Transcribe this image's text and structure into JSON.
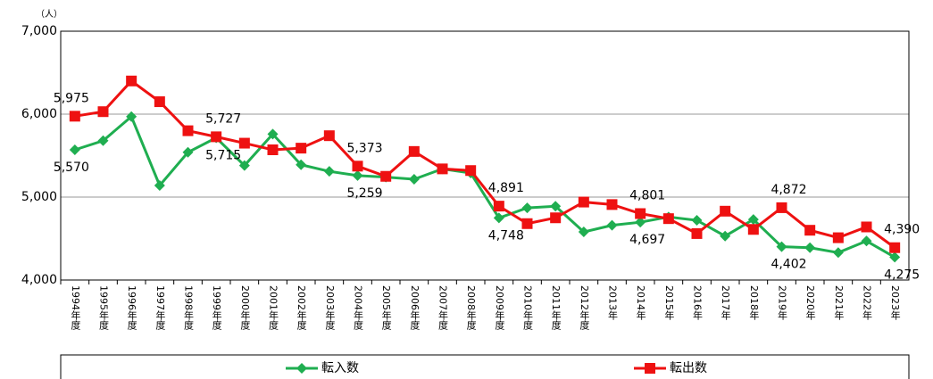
{
  "chart_data": {
    "type": "line",
    "y_unit": "（人）",
    "categories": [
      "1994年度",
      "1995年度",
      "1996年度",
      "1997年度",
      "1998年度",
      "1999年度",
      "2000年度",
      "2001年度",
      "2002年度",
      "2003年度",
      "2004年度",
      "2005年度",
      "2006年度",
      "2007年度",
      "2008年度",
      "2009年度",
      "2010年度",
      "2011年度",
      "2012年度",
      "2013年",
      "2014年",
      "2015年",
      "2016年",
      "2017年",
      "2018年",
      "2019年",
      "2020年",
      "2021年",
      "2022年",
      "2023年"
    ],
    "series": [
      {
        "name": "転入数",
        "color": "#1fae50",
        "marker": "diamond",
        "values": [
          5570,
          5680,
          5970,
          5140,
          5540,
          5715,
          5380,
          5760,
          5390,
          5310,
          5259,
          5240,
          5215,
          5340,
          5290,
          4748,
          4870,
          4890,
          4580,
          4660,
          4697,
          4760,
          4720,
          4530,
          4730,
          4402,
          4390,
          4330,
          4470,
          4275
        ],
        "value_labels": [
          "5,570",
          null,
          null,
          null,
          null,
          "5,715",
          null,
          null,
          null,
          null,
          "5,259",
          null,
          null,
          null,
          null,
          "4,748",
          null,
          null,
          null,
          null,
          "4,697",
          null,
          null,
          null,
          null,
          "4,402",
          null,
          null,
          null,
          "4,275"
        ]
      },
      {
        "name": "転出数",
        "color": "#ee1111",
        "marker": "square",
        "values": [
          5975,
          6030,
          6400,
          6150,
          5800,
          5727,
          5650,
          5570,
          5590,
          5740,
          5373,
          5250,
          5550,
          5340,
          5320,
          4891,
          4680,
          4750,
          4940,
          4910,
          4801,
          4740,
          4560,
          4830,
          4610,
          4872,
          4600,
          4510,
          4640,
          4390
        ],
        "value_labels": [
          "5,975",
          null,
          null,
          null,
          null,
          "5,727",
          null,
          null,
          null,
          null,
          "5,373",
          null,
          null,
          null,
          null,
          "4,891",
          null,
          null,
          null,
          null,
          "4,801",
          null,
          null,
          null,
          null,
          "4,872",
          null,
          null,
          null,
          "4,390"
        ]
      }
    ],
    "ylim": [
      4000,
      7000
    ],
    "yticks": [
      {
        "value": 4000,
        "label": "4,000"
      },
      {
        "value": 5000,
        "label": "5,000"
      },
      {
        "value": 6000,
        "label": "6,000"
      },
      {
        "value": 7000,
        "label": "7,000"
      }
    ],
    "grid": true
  }
}
